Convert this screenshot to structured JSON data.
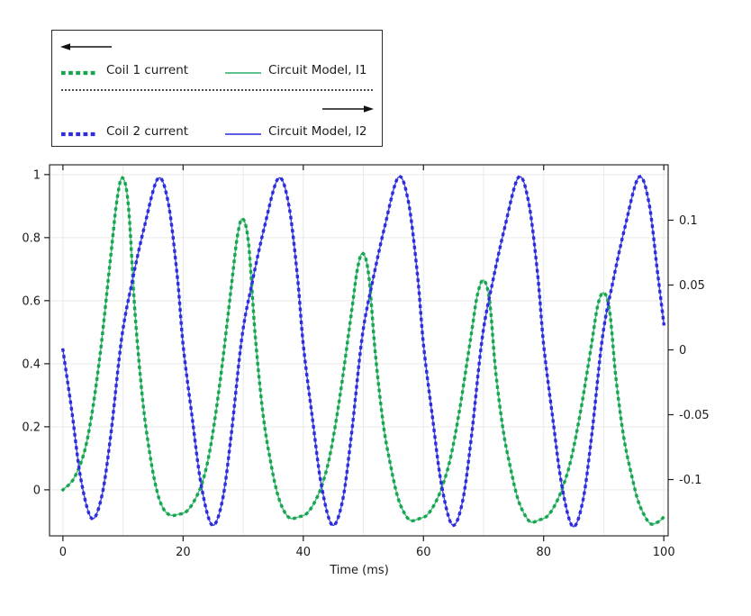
{
  "figure": {
    "background": "#ffffff",
    "border_color": "#2b2b2b",
    "grid_color": "#e9e9e9",
    "tick_color": "#1c1c1c",
    "label_color": "#1c1c1c"
  },
  "legend": {
    "rows": [
      {
        "dotted_label": "Coil 1 current",
        "solid_label": "Circuit Model, I1",
        "dotted_color": "#17a54e",
        "solid_color": "#43bb80",
        "arrow": "left"
      },
      {
        "dotted_label": "Coil 2 current",
        "solid_label": "Circuit Model, I2",
        "dotted_color": "#2d2dde",
        "solid_color": "#4547e2",
        "arrow": "right"
      }
    ]
  },
  "chart_data": {
    "type": "line",
    "title": "",
    "xlabel": "Time (ms)",
    "xlim": [
      -2.23,
      100.72
    ],
    "x_ticks": [
      0,
      20,
      40,
      60,
      80,
      100
    ],
    "x_tick_labels": [
      "0",
      "20",
      "40",
      "60",
      "80",
      "100"
    ],
    "x_grid_values": [
      0,
      10,
      20,
      30,
      40,
      50,
      60,
      70,
      80,
      90,
      100
    ],
    "left_axis": {
      "lim": [
        -0.146,
        1.031
      ],
      "ticks": [
        0,
        0.2,
        0.4,
        0.6,
        0.8,
        1
      ],
      "tick_labels": [
        "0",
        "0.2",
        "0.4",
        "0.6",
        "0.8",
        "1"
      ],
      "grid": true
    },
    "right_axis": {
      "lim": [
        -0.1434,
        0.1427
      ],
      "ticks": [
        0.1,
        0.05,
        0,
        -0.05,
        -0.1
      ],
      "tick_labels": [
        "0.1",
        "0.05",
        "0",
        "-0.05",
        "-0.1"
      ],
      "grid": false
    },
    "legend_position": "top-left-outside",
    "series": [
      {
        "name": "Circuit Model, I1",
        "axis": "left",
        "style": "solid",
        "color": "#43bb80",
        "curve": "I1"
      },
      {
        "name": "Coil 1 current",
        "axis": "left",
        "style": "dotted",
        "color": "#17a54e",
        "curve": "I1"
      },
      {
        "name": "Circuit Model, I2",
        "axis": "right",
        "style": "solid",
        "color": "#4547e2",
        "curve": "I2"
      },
      {
        "name": "Coil 2 current",
        "axis": "right",
        "style": "dotted",
        "color": "#2d2dde",
        "curve": "I2"
      }
    ],
    "curves": {
      "I1": [
        [
          0,
          0.0
        ],
        [
          2,
          0.042
        ],
        [
          4,
          0.155
        ],
        [
          6,
          0.4
        ],
        [
          8,
          0.75
        ],
        [
          9,
          0.92
        ],
        [
          9.9,
          0.99
        ],
        [
          10.9,
          0.9
        ],
        [
          12,
          0.56
        ],
        [
          13.3,
          0.28
        ],
        [
          14.5,
          0.11
        ],
        [
          15.6,
          0.0
        ],
        [
          16.6,
          -0.056
        ],
        [
          17.8,
          -0.08
        ],
        [
          19.2,
          -0.078
        ],
        [
          20.6,
          -0.068
        ],
        [
          22,
          -0.03
        ],
        [
          23.3,
          0.03
        ],
        [
          24.6,
          0.14
        ],
        [
          26.2,
          0.35
        ],
        [
          28,
          0.64
        ],
        [
          29,
          0.8
        ],
        [
          29.9,
          0.86
        ],
        [
          30.9,
          0.78
        ],
        [
          32,
          0.49
        ],
        [
          33.3,
          0.24
        ],
        [
          34.5,
          0.095
        ],
        [
          35.6,
          -0.005
        ],
        [
          36.6,
          -0.06
        ],
        [
          37.8,
          -0.09
        ],
        [
          39.2,
          -0.086
        ],
        [
          40.6,
          -0.075
        ],
        [
          42,
          -0.035
        ],
        [
          43.3,
          0.025
        ],
        [
          44.6,
          0.125
        ],
        [
          46.2,
          0.31
        ],
        [
          48,
          0.56
        ],
        [
          49,
          0.7
        ],
        [
          49.9,
          0.75
        ],
        [
          50.9,
          0.68
        ],
        [
          52,
          0.43
        ],
        [
          53.3,
          0.21
        ],
        [
          54.5,
          0.08
        ],
        [
          55.6,
          -0.015
        ],
        [
          56.6,
          -0.066
        ],
        [
          57.8,
          -0.097
        ],
        [
          59.2,
          -0.092
        ],
        [
          60.6,
          -0.08
        ],
        [
          62,
          -0.04
        ],
        [
          63.3,
          0.02
        ],
        [
          64.6,
          0.11
        ],
        [
          66.2,
          0.275
        ],
        [
          68,
          0.5
        ],
        [
          69,
          0.62
        ],
        [
          70,
          0.665
        ],
        [
          71,
          0.6
        ],
        [
          72,
          0.38
        ],
        [
          73.3,
          0.185
        ],
        [
          74.5,
          0.068
        ],
        [
          75.6,
          -0.022
        ],
        [
          76.6,
          -0.07
        ],
        [
          77.8,
          -0.102
        ],
        [
          79.2,
          -0.096
        ],
        [
          80.6,
          -0.084
        ],
        [
          82,
          -0.044
        ],
        [
          83.3,
          0.015
        ],
        [
          84.6,
          0.1
        ],
        [
          86.2,
          0.255
        ],
        [
          88,
          0.465
        ],
        [
          89,
          0.585
        ],
        [
          90,
          0.625
        ],
        [
          91,
          0.565
        ],
        [
          92,
          0.36
        ],
        [
          93.3,
          0.17
        ],
        [
          94.5,
          0.058
        ],
        [
          95.6,
          -0.028
        ],
        [
          96.6,
          -0.075
        ],
        [
          97.8,
          -0.108
        ],
        [
          99.2,
          -0.1
        ],
        [
          100,
          -0.086
        ]
      ],
      "I2": [
        [
          0,
          0.0
        ],
        [
          1.5,
          -0.048
        ],
        [
          3,
          -0.1
        ],
        [
          4.8,
          -0.13
        ],
        [
          6.5,
          -0.112
        ],
        [
          8,
          -0.064
        ],
        [
          9.8,
          0.01
        ],
        [
          11.5,
          0.052
        ],
        [
          13.5,
          0.094
        ],
        [
          15.8,
          0.132
        ],
        [
          17.5,
          0.114
        ],
        [
          19,
          0.058
        ],
        [
          20,
          0.004
        ],
        [
          21.5,
          -0.052
        ],
        [
          23,
          -0.104
        ],
        [
          24.8,
          -0.135
        ],
        [
          26.5,
          -0.117
        ],
        [
          28,
          -0.066
        ],
        [
          29.8,
          0.01
        ],
        [
          31.5,
          0.052
        ],
        [
          33.5,
          0.094
        ],
        [
          35.8,
          0.132
        ],
        [
          37.5,
          0.114
        ],
        [
          39,
          0.058
        ],
        [
          40,
          0.004
        ],
        [
          41.5,
          -0.052
        ],
        [
          43,
          -0.104
        ],
        [
          44.8,
          -0.135
        ],
        [
          46.5,
          -0.117
        ],
        [
          48,
          -0.066
        ],
        [
          49.8,
          0.01
        ],
        [
          51.5,
          0.052
        ],
        [
          53.5,
          0.094
        ],
        [
          55.8,
          0.133
        ],
        [
          57.5,
          0.114
        ],
        [
          59,
          0.058
        ],
        [
          60,
          0.004
        ],
        [
          61.5,
          -0.052
        ],
        [
          63,
          -0.104
        ],
        [
          64.8,
          -0.135
        ],
        [
          66.5,
          -0.117
        ],
        [
          68,
          -0.066
        ],
        [
          69.8,
          0.01
        ],
        [
          71.5,
          0.052
        ],
        [
          73.5,
          0.094
        ],
        [
          75.8,
          0.133
        ],
        [
          77.5,
          0.114
        ],
        [
          79,
          0.058
        ],
        [
          80,
          0.004
        ],
        [
          81.5,
          -0.052
        ],
        [
          83,
          -0.104
        ],
        [
          84.8,
          -0.136
        ],
        [
          86.5,
          -0.117
        ],
        [
          88,
          -0.066
        ],
        [
          89.8,
          0.01
        ],
        [
          91.5,
          0.052
        ],
        [
          93.5,
          0.094
        ],
        [
          95.8,
          0.133
        ],
        [
          97.5,
          0.114
        ],
        [
          99,
          0.058
        ],
        [
          100,
          0.02
        ]
      ]
    }
  }
}
